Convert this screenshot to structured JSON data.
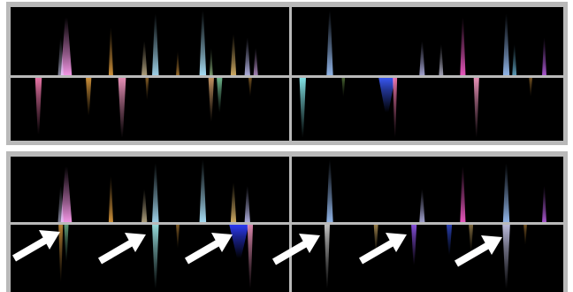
{
  "panels": [
    {
      "id": "top",
      "quadrants": [
        {
          "id": "tl",
          "streaks": [
            {
              "color": "#ff9ef0",
              "pos": 0.2,
              "spread": 0.02,
              "dir": "up",
              "len": 0.85,
              "alpha": 0.95
            },
            {
              "color": "#d9d9ff",
              "pos": 0.18,
              "spread": 0.01,
              "dir": "up",
              "len": 0.55,
              "alpha": 0.6
            },
            {
              "color": "#ffb347",
              "pos": 0.36,
              "spread": 0.008,
              "dir": "up",
              "len": 0.7,
              "alpha": 0.8
            },
            {
              "color": "#f5e0b0",
              "pos": 0.48,
              "spread": 0.01,
              "dir": "up",
              "len": 0.5,
              "alpha": 0.7
            },
            {
              "color": "#aee6ff",
              "pos": 0.52,
              "spread": 0.012,
              "dir": "up",
              "len": 0.9,
              "alpha": 0.9
            },
            {
              "color": "#ffb347",
              "pos": 0.6,
              "spread": 0.006,
              "dir": "up",
              "len": 0.35,
              "alpha": 0.6
            },
            {
              "color": "#aee6ff",
              "pos": 0.69,
              "spread": 0.012,
              "dir": "up",
              "len": 0.95,
              "alpha": 0.95
            },
            {
              "color": "#c6ffb3",
              "pos": 0.72,
              "spread": 0.006,
              "dir": "up",
              "len": 0.4,
              "alpha": 0.6
            },
            {
              "color": "#ffd27a",
              "pos": 0.8,
              "spread": 0.01,
              "dir": "up",
              "len": 0.6,
              "alpha": 0.8
            },
            {
              "color": "#c9c9ff",
              "pos": 0.85,
              "spread": 0.01,
              "dir": "up",
              "len": 0.55,
              "alpha": 0.85
            },
            {
              "color": "#e7b7ff",
              "pos": 0.88,
              "spread": 0.008,
              "dir": "up",
              "len": 0.4,
              "alpha": 0.7
            }
          ]
        },
        {
          "id": "tr",
          "streaks": [
            {
              "color": "#9fc7ff",
              "pos": 0.14,
              "spread": 0.012,
              "dir": "up",
              "len": 0.95,
              "alpha": 0.9
            },
            {
              "color": "#c6c6ff",
              "pos": 0.48,
              "spread": 0.01,
              "dir": "up",
              "len": 0.5,
              "alpha": 0.8
            },
            {
              "color": "#e3e3ff",
              "pos": 0.55,
              "spread": 0.008,
              "dir": "up",
              "len": 0.45,
              "alpha": 0.7
            },
            {
              "color": "#ff5fd1",
              "pos": 0.63,
              "spread": 0.01,
              "dir": "up",
              "len": 0.85,
              "alpha": 0.9
            },
            {
              "color": "#9fc7ff",
              "pos": 0.79,
              "spread": 0.012,
              "dir": "up",
              "len": 0.9,
              "alpha": 0.9
            },
            {
              "color": "#7fd7ff",
              "pos": 0.82,
              "spread": 0.008,
              "dir": "up",
              "len": 0.45,
              "alpha": 0.7
            },
            {
              "color": "#d06bff",
              "pos": 0.93,
              "spread": 0.008,
              "dir": "up",
              "len": 0.55,
              "alpha": 0.8
            }
          ]
        },
        {
          "id": "bl",
          "streaks": [
            {
              "color": "#ff7fb6",
              "pos": 0.1,
              "spread": 0.012,
              "dir": "down",
              "len": 0.9,
              "alpha": 0.9
            },
            {
              "color": "#ffb347",
              "pos": 0.28,
              "spread": 0.01,
              "dir": "down",
              "len": 0.6,
              "alpha": 0.8
            },
            {
              "color": "#ff9ec9",
              "pos": 0.4,
              "spread": 0.014,
              "dir": "down",
              "len": 0.95,
              "alpha": 0.9
            },
            {
              "color": "#ffb347",
              "pos": 0.49,
              "spread": 0.006,
              "dir": "down",
              "len": 0.35,
              "alpha": 0.5
            },
            {
              "color": "#ffc080",
              "pos": 0.72,
              "spread": 0.01,
              "dir": "down",
              "len": 0.7,
              "alpha": 0.75
            },
            {
              "color": "#9affc4",
              "pos": 0.75,
              "spread": 0.01,
              "dir": "down",
              "len": 0.55,
              "alpha": 0.7
            },
            {
              "color": "#ffb347",
              "pos": 0.86,
              "spread": 0.006,
              "dir": "down",
              "len": 0.3,
              "alpha": 0.45
            }
          ]
        },
        {
          "id": "br",
          "streaks": [
            {
              "color": "#8ffbff",
              "pos": 0.04,
              "spread": 0.012,
              "dir": "down",
              "len": 0.95,
              "alpha": 0.9
            },
            {
              "color": "#9ad86a",
              "pos": 0.19,
              "spread": 0.006,
              "dir": "down",
              "len": 0.3,
              "alpha": 0.45
            },
            {
              "color": "#3b5bff",
              "pos": 0.35,
              "spread": 0.03,
              "dir": "down",
              "len": 0.55,
              "alpha": 0.95
            },
            {
              "color": "#ff7fb6",
              "pos": 0.38,
              "spread": 0.008,
              "dir": "down",
              "len": 0.95,
              "alpha": 0.9
            },
            {
              "color": "#ff9ec9",
              "pos": 0.68,
              "spread": 0.01,
              "dir": "down",
              "len": 0.95,
              "alpha": 0.9
            },
            {
              "color": "#ffb347",
              "pos": 0.88,
              "spread": 0.006,
              "dir": "down",
              "len": 0.3,
              "alpha": 0.45
            }
          ]
        }
      ]
    },
    {
      "id": "bottom",
      "quadrants": [
        {
          "id": "tl",
          "streaks": [
            {
              "color": "#ff9ef0",
              "pos": 0.2,
              "spread": 0.02,
              "dir": "up",
              "len": 0.85,
              "alpha": 0.95
            },
            {
              "color": "#d9d9ff",
              "pos": 0.18,
              "spread": 0.01,
              "dir": "up",
              "len": 0.55,
              "alpha": 0.6
            },
            {
              "color": "#ffb347",
              "pos": 0.36,
              "spread": 0.008,
              "dir": "up",
              "len": 0.7,
              "alpha": 0.8
            },
            {
              "color": "#f5e0b0",
              "pos": 0.48,
              "spread": 0.01,
              "dir": "up",
              "len": 0.5,
              "alpha": 0.7
            },
            {
              "color": "#aee6ff",
              "pos": 0.52,
              "spread": 0.012,
              "dir": "up",
              "len": 0.9,
              "alpha": 0.9
            },
            {
              "color": "#aee6ff",
              "pos": 0.69,
              "spread": 0.012,
              "dir": "up",
              "len": 0.95,
              "alpha": 0.95
            },
            {
              "color": "#ffd27a",
              "pos": 0.8,
              "spread": 0.01,
              "dir": "up",
              "len": 0.6,
              "alpha": 0.8
            },
            {
              "color": "#c9c9ff",
              "pos": 0.85,
              "spread": 0.01,
              "dir": "up",
              "len": 0.55,
              "alpha": 0.85
            }
          ]
        },
        {
          "id": "tr",
          "streaks": [
            {
              "color": "#9fc7ff",
              "pos": 0.14,
              "spread": 0.012,
              "dir": "up",
              "len": 0.95,
              "alpha": 0.9
            },
            {
              "color": "#c6c6ff",
              "pos": 0.48,
              "spread": 0.01,
              "dir": "up",
              "len": 0.5,
              "alpha": 0.8
            },
            {
              "color": "#ff5fd1",
              "pos": 0.63,
              "spread": 0.01,
              "dir": "up",
              "len": 0.85,
              "alpha": 0.9
            },
            {
              "color": "#9fc7ff",
              "pos": 0.79,
              "spread": 0.012,
              "dir": "up",
              "len": 0.9,
              "alpha": 0.9
            },
            {
              "color": "#d06bff",
              "pos": 0.93,
              "spread": 0.008,
              "dir": "up",
              "len": 0.55,
              "alpha": 0.8
            }
          ]
        },
        {
          "id": "bl",
          "streaks": [
            {
              "color": "#ffb347",
              "pos": 0.18,
              "spread": 0.008,
              "dir": "down",
              "len": 0.85,
              "alpha": 0.7
            },
            {
              "color": "#9affc4",
              "pos": 0.2,
              "spread": 0.008,
              "dir": "down",
              "len": 0.55,
              "alpha": 0.6
            },
            {
              "color": "#aeffff",
              "pos": 0.52,
              "spread": 0.012,
              "dir": "down",
              "len": 0.95,
              "alpha": 0.85
            },
            {
              "color": "#ffb347",
              "pos": 0.6,
              "spread": 0.006,
              "dir": "down",
              "len": 0.35,
              "alpha": 0.5
            },
            {
              "color": "#2f3dff",
              "pos": 0.82,
              "spread": 0.035,
              "dir": "down",
              "len": 0.5,
              "alpha": 0.95
            },
            {
              "color": "#ff9ec9",
              "pos": 0.86,
              "spread": 0.01,
              "dir": "down",
              "len": 0.95,
              "alpha": 0.85
            }
          ]
        },
        {
          "id": "br",
          "streaks": [
            {
              "color": "#ffffff",
              "pos": 0.13,
              "spread": 0.01,
              "dir": "down",
              "len": 0.95,
              "alpha": 0.75
            },
            {
              "color": "#ffd27a",
              "pos": 0.31,
              "spread": 0.008,
              "dir": "down",
              "len": 0.4,
              "alpha": 0.6
            },
            {
              "color": "#9b5bff",
              "pos": 0.45,
              "spread": 0.01,
              "dir": "down",
              "len": 0.6,
              "alpha": 0.85
            },
            {
              "color": "#3b5bff",
              "pos": 0.58,
              "spread": 0.01,
              "dir": "down",
              "len": 0.45,
              "alpha": 0.7
            },
            {
              "color": "#ffd27a",
              "pos": 0.66,
              "spread": 0.008,
              "dir": "down",
              "len": 0.4,
              "alpha": 0.5
            },
            {
              "color": "#d9d9ff",
              "pos": 0.79,
              "spread": 0.014,
              "dir": "down",
              "len": 0.95,
              "alpha": 0.85
            },
            {
              "color": "#ffb347",
              "pos": 0.86,
              "spread": 0.006,
              "dir": "down",
              "len": 0.3,
              "alpha": 0.45
            }
          ]
        }
      ]
    }
  ],
  "arrows": {
    "count": 6,
    "color": "#ffffff",
    "direction": "up-right"
  }
}
